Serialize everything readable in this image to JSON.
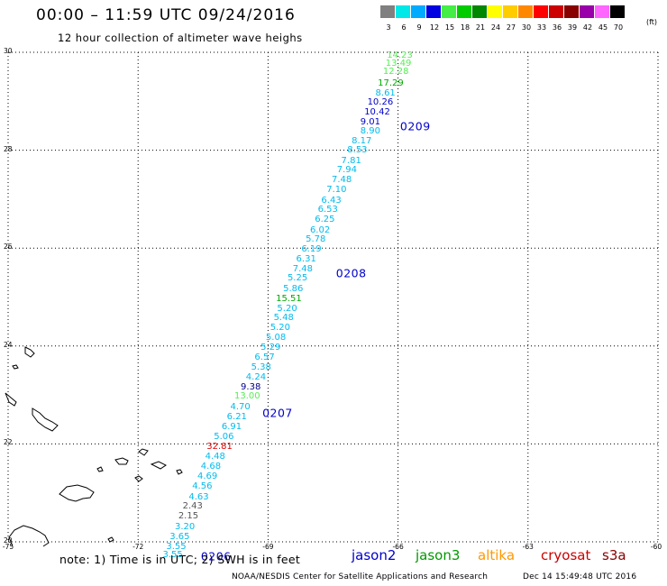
{
  "header": {
    "title": "00:00 – 11:59 UTC 09/24/2016",
    "subtitle": "12 hour collection of altimeter wave heighs"
  },
  "color_scale": {
    "labels": [
      "3",
      "6",
      "9",
      "12",
      "15",
      "18",
      "21",
      "24",
      "27",
      "30",
      "33",
      "36",
      "39",
      "42",
      "45",
      "70"
    ],
    "colors": [
      "#808080",
      "#00e8e8",
      "#00aaff",
      "#0000e0",
      "#44ee44",
      "#00cc00",
      "#008800",
      "#ffff00",
      "#ffcc00",
      "#ff8800",
      "#ff0000",
      "#cc0000",
      "#880000",
      "#9900aa",
      "#ff66ff",
      "#000000"
    ],
    "unit": "(ft)"
  },
  "map": {
    "lon_ticks": [
      "-75",
      "-72",
      "-69",
      "-66",
      "-63",
      "-60"
    ],
    "lat_ticks": [
      "20",
      "22",
      "24",
      "26",
      "28",
      "30"
    ],
    "extent": {
      "lon": [
        -75,
        -60
      ],
      "lat": [
        20,
        30
      ]
    },
    "grid": "dotted"
  },
  "observations": [
    {
      "lon": -65.96,
      "lat": 29.93,
      "value": "14.23",
      "color": "#55ee55"
    },
    {
      "lon": -65.99,
      "lat": 29.76,
      "value": "13.49",
      "color": "#55ee55"
    },
    {
      "lon": -66.05,
      "lat": 29.59,
      "value": "12.28",
      "color": "#55ee55"
    },
    {
      "lon": -66.17,
      "lat": 29.35,
      "value": "17.29",
      "color": "#00aa00"
    },
    {
      "lon": -66.29,
      "lat": 29.15,
      "value": "8.61",
      "color": "#00bbee"
    },
    {
      "lon": -66.41,
      "lat": 28.96,
      "value": "10.26",
      "color": "#0000cc"
    },
    {
      "lon": -66.48,
      "lat": 28.76,
      "value": "10.42",
      "color": "#0000cc"
    },
    {
      "lon": -66.64,
      "lat": 28.57,
      "value": "9.01",
      "color": "#0000cc"
    },
    {
      "lon": -66.64,
      "lat": 28.38,
      "value": "8.90",
      "color": "#00bbee"
    },
    {
      "lon": -66.84,
      "lat": 28.17,
      "value": "8.17",
      "color": "#00bbee"
    },
    {
      "lon": -66.94,
      "lat": 27.99,
      "value": "8.53",
      "color": "#00bbee"
    },
    {
      "lon": -67.08,
      "lat": 27.77,
      "value": "7.81",
      "color": "#00bbee"
    },
    {
      "lon": -67.18,
      "lat": 27.59,
      "value": "7.94",
      "color": "#00bbee"
    },
    {
      "lon": -67.3,
      "lat": 27.38,
      "value": "7.48",
      "color": "#00bbee"
    },
    {
      "lon": -67.42,
      "lat": 27.18,
      "value": "7.10",
      "color": "#00bbee"
    },
    {
      "lon": -67.54,
      "lat": 26.97,
      "value": "6.43",
      "color": "#00bbee"
    },
    {
      "lon": -67.62,
      "lat": 26.78,
      "value": "6.53",
      "color": "#00bbee"
    },
    {
      "lon": -67.69,
      "lat": 26.57,
      "value": "6.25",
      "color": "#00bbee"
    },
    {
      "lon": -67.8,
      "lat": 26.36,
      "value": "6.02",
      "color": "#00bbee"
    },
    {
      "lon": -67.9,
      "lat": 26.17,
      "value": "5.78",
      "color": "#00bbee"
    },
    {
      "lon": -68.0,
      "lat": 25.97,
      "value": "6.19",
      "color": "#00bbee"
    },
    {
      "lon": -68.12,
      "lat": 25.76,
      "value": "6.31",
      "color": "#00bbee"
    },
    {
      "lon": -68.2,
      "lat": 25.56,
      "value": "7.48",
      "color": "#00bbee"
    },
    {
      "lon": -68.32,
      "lat": 25.37,
      "value": "5.25",
      "color": "#00bbee"
    },
    {
      "lon": -68.42,
      "lat": 25.16,
      "value": "5.86",
      "color": "#00bbee"
    },
    {
      "lon": -68.52,
      "lat": 24.96,
      "value": "15.51",
      "color": "#00aa00"
    },
    {
      "lon": -68.56,
      "lat": 24.76,
      "value": "5.20",
      "color": "#00bbee"
    },
    {
      "lon": -68.64,
      "lat": 24.57,
      "value": "5.48",
      "color": "#00bbee"
    },
    {
      "lon": -68.72,
      "lat": 24.37,
      "value": "5.20",
      "color": "#00bbee"
    },
    {
      "lon": -68.82,
      "lat": 24.16,
      "value": "5.08",
      "color": "#00bbee"
    },
    {
      "lon": -68.94,
      "lat": 23.96,
      "value": "5.29",
      "color": "#00bbee"
    },
    {
      "lon": -69.08,
      "lat": 23.75,
      "value": "6.57",
      "color": "#00bbee"
    },
    {
      "lon": -69.16,
      "lat": 23.55,
      "value": "5.38",
      "color": "#00bbee"
    },
    {
      "lon": -69.28,
      "lat": 23.36,
      "value": "4.24",
      "color": "#00bbee"
    },
    {
      "lon": -69.4,
      "lat": 23.15,
      "value": "9.38",
      "color": "#000088"
    },
    {
      "lon": -69.48,
      "lat": 22.96,
      "value": "13.00",
      "color": "#55ee55"
    },
    {
      "lon": -69.64,
      "lat": 22.75,
      "value": "4.70",
      "color": "#00bbee"
    },
    {
      "lon": -69.72,
      "lat": 22.54,
      "value": "6.21",
      "color": "#00bbee"
    },
    {
      "lon": -69.84,
      "lat": 22.34,
      "value": "6.91",
      "color": "#00bbee"
    },
    {
      "lon": -70.02,
      "lat": 22.14,
      "value": "5.06",
      "color": "#00bbee"
    },
    {
      "lon": -70.12,
      "lat": 21.93,
      "value": "32.81",
      "color": "#dd0000"
    },
    {
      "lon": -70.22,
      "lat": 21.73,
      "value": "4.48",
      "color": "#00bbee"
    },
    {
      "lon": -70.32,
      "lat": 21.53,
      "value": "4.68",
      "color": "#00bbee"
    },
    {
      "lon": -70.4,
      "lat": 21.32,
      "value": "4.69",
      "color": "#00bbee"
    },
    {
      "lon": -70.52,
      "lat": 21.12,
      "value": "4.56",
      "color": "#00bbee"
    },
    {
      "lon": -70.6,
      "lat": 20.91,
      "value": "4.63",
      "color": "#00bbee"
    },
    {
      "lon": -70.74,
      "lat": 20.71,
      "value": "2.43",
      "color": "#555555"
    },
    {
      "lon": -70.84,
      "lat": 20.51,
      "value": "2.15",
      "color": "#555555"
    },
    {
      "lon": -70.92,
      "lat": 20.3,
      "value": "3.20",
      "color": "#00bbee"
    },
    {
      "lon": -71.04,
      "lat": 20.1,
      "value": "3.65",
      "color": "#00bbee"
    },
    {
      "lon": -71.12,
      "lat": 19.89,
      "value": "3.55",
      "color": "#00bbee"
    },
    {
      "lon": -71.2,
      "lat": 19.72,
      "value": "3.55",
      "color": "#00bbee"
    }
  ],
  "passes": [
    {
      "label": "0209",
      "lon": -65.6,
      "lat": 28.49
    },
    {
      "label": "0208",
      "lon": -67.08,
      "lat": 25.48
    },
    {
      "label": "0207",
      "lon": -68.78,
      "lat": 22.64
    },
    {
      "label": "0206",
      "lon": -70.2,
      "lat": 19.7
    }
  ],
  "footer": {
    "note": "note: 1) Time is in UTC; 2) SWH is in feet",
    "satellites": [
      {
        "name": "jason2",
        "color": "#0000cc"
      },
      {
        "name": "jason3",
        "color": "#009900"
      },
      {
        "name": "altika",
        "color": "#ff9900"
      },
      {
        "name": "cryosat",
        "color": "#cc0000"
      },
      {
        "name": "s3a",
        "color": "#880000"
      }
    ],
    "credit": "NOAA/NESDIS Center for Satellite Applications and Research",
    "timestamp": "Dec 14 15:49:48 UTC 2016"
  }
}
